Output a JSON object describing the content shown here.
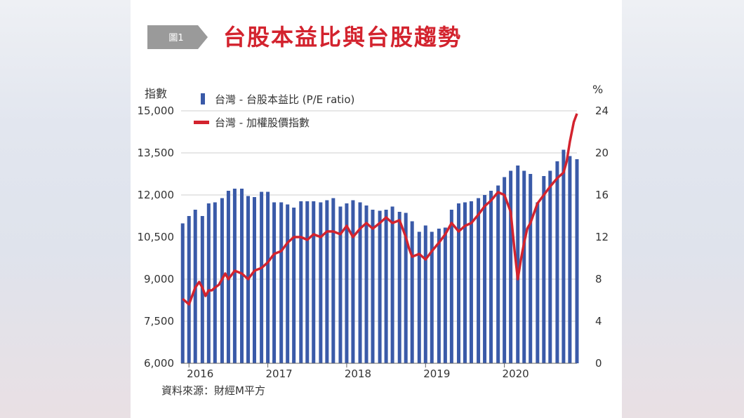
{
  "badge": {
    "label": "圖1"
  },
  "chart_data": {
    "type": "bar+line",
    "title": "台股本益比與台股趨勢",
    "y_left_label": "指數",
    "y_right_label": "%",
    "y_left_ticks": [
      "15,000",
      "13,500",
      "12,000",
      "10,500",
      "9,000",
      "7,500",
      "6,000"
    ],
    "y_right_ticks": [
      "24",
      "20",
      "16",
      "12",
      "8",
      "4",
      "0"
    ],
    "y_left_range": [
      6000,
      15000
    ],
    "y_right_range": [
      0,
      24
    ],
    "x_ticks": [
      "2016",
      "2017",
      "2018",
      "2019",
      "2020"
    ],
    "x_range": [
      2015.9,
      2020.92
    ],
    "grid": "horizontal",
    "legend_position": "top-left",
    "series": [
      {
        "name": "台灣 - 台股本益比 (P/E ratio)",
        "axis": "right",
        "kind": "bar",
        "color": "#3a5aa8",
        "x": [
          2015.92,
          2016.0,
          2016.08,
          2016.17,
          2016.25,
          2016.33,
          2016.42,
          2016.5,
          2016.58,
          2016.67,
          2016.75,
          2016.83,
          2016.92,
          2017.0,
          2017.08,
          2017.17,
          2017.25,
          2017.33,
          2017.42,
          2017.5,
          2017.58,
          2017.67,
          2017.75,
          2017.83,
          2017.92,
          2018.0,
          2018.08,
          2018.17,
          2018.25,
          2018.33,
          2018.42,
          2018.5,
          2018.58,
          2018.67,
          2018.75,
          2018.83,
          2018.92,
          2019.0,
          2019.08,
          2019.17,
          2019.25,
          2019.33,
          2019.42,
          2019.5,
          2019.58,
          2019.67,
          2019.75,
          2019.83,
          2019.92,
          2020.0,
          2020.08,
          2020.17,
          2020.25,
          2020.33,
          2020.42,
          2020.5,
          2020.58,
          2020.67,
          2020.75,
          2020.83,
          2020.92
        ],
        "values": [
          13.3,
          14.0,
          14.6,
          14.0,
          15.2,
          15.3,
          15.7,
          16.4,
          16.6,
          16.6,
          15.9,
          15.8,
          16.3,
          16.3,
          15.3,
          15.3,
          15.1,
          14.8,
          15.4,
          15.4,
          15.4,
          15.3,
          15.5,
          15.7,
          14.9,
          15.2,
          15.5,
          15.3,
          15.0,
          14.6,
          14.5,
          14.6,
          14.9,
          14.4,
          14.3,
          13.5,
          12.5,
          13.1,
          12.5,
          12.8,
          12.9,
          14.6,
          15.2,
          15.3,
          15.4,
          15.7,
          16.0,
          16.4,
          16.9,
          17.7,
          18.3,
          18.8,
          18.3,
          18.0,
          15.3,
          17.8,
          18.3,
          19.2,
          20.3,
          19.7,
          19.4
        ]
      },
      {
        "name": "台灣 - 加權股價指數",
        "axis": "left",
        "kind": "line",
        "color": "#d3232e",
        "x": [
          2015.92,
          2016.0,
          2016.04,
          2016.08,
          2016.13,
          2016.17,
          2016.21,
          2016.25,
          2016.29,
          2016.33,
          2016.38,
          2016.42,
          2016.46,
          2016.5,
          2016.58,
          2016.67,
          2016.75,
          2016.83,
          2016.92,
          2017.0,
          2017.08,
          2017.17,
          2017.25,
          2017.33,
          2017.42,
          2017.5,
          2017.58,
          2017.67,
          2017.75,
          2017.83,
          2017.92,
          2018.0,
          2018.08,
          2018.17,
          2018.25,
          2018.33,
          2018.42,
          2018.5,
          2018.58,
          2018.67,
          2018.75,
          2018.79,
          2018.83,
          2018.92,
          2019.0,
          2019.08,
          2019.17,
          2019.25,
          2019.33,
          2019.42,
          2019.5,
          2019.58,
          2019.67,
          2019.75,
          2019.83,
          2019.92,
          2020.0,
          2020.04,
          2020.08,
          2020.13,
          2020.17,
          2020.21,
          2020.25,
          2020.29,
          2020.33,
          2020.42,
          2020.5,
          2020.58,
          2020.67,
          2020.75,
          2020.79,
          2020.83,
          2020.88,
          2020.92
        ],
        "values": [
          8300,
          8100,
          8400,
          8700,
          8900,
          8700,
          8400,
          8600,
          8600,
          8700,
          8800,
          9000,
          9200,
          9000,
          9300,
          9200,
          9000,
          9300,
          9400,
          9600,
          9900,
          10000,
          10300,
          10500,
          10500,
          10400,
          10600,
          10500,
          10700,
          10700,
          10600,
          10900,
          10500,
          10800,
          11000,
          10800,
          11000,
          11200,
          11000,
          11100,
          10500,
          10100,
          9800,
          9900,
          9700,
          10000,
          10300,
          10600,
          11000,
          10700,
          10900,
          11000,
          11300,
          11600,
          11800,
          12100,
          12000,
          11700,
          11400,
          10000,
          9000,
          9700,
          10300,
          10800,
          11000,
          11700,
          12000,
          12300,
          12600,
          12800,
          13200,
          13900,
          14600,
          14900
        ]
      }
    ]
  },
  "source": "資料來源：財經M平方"
}
